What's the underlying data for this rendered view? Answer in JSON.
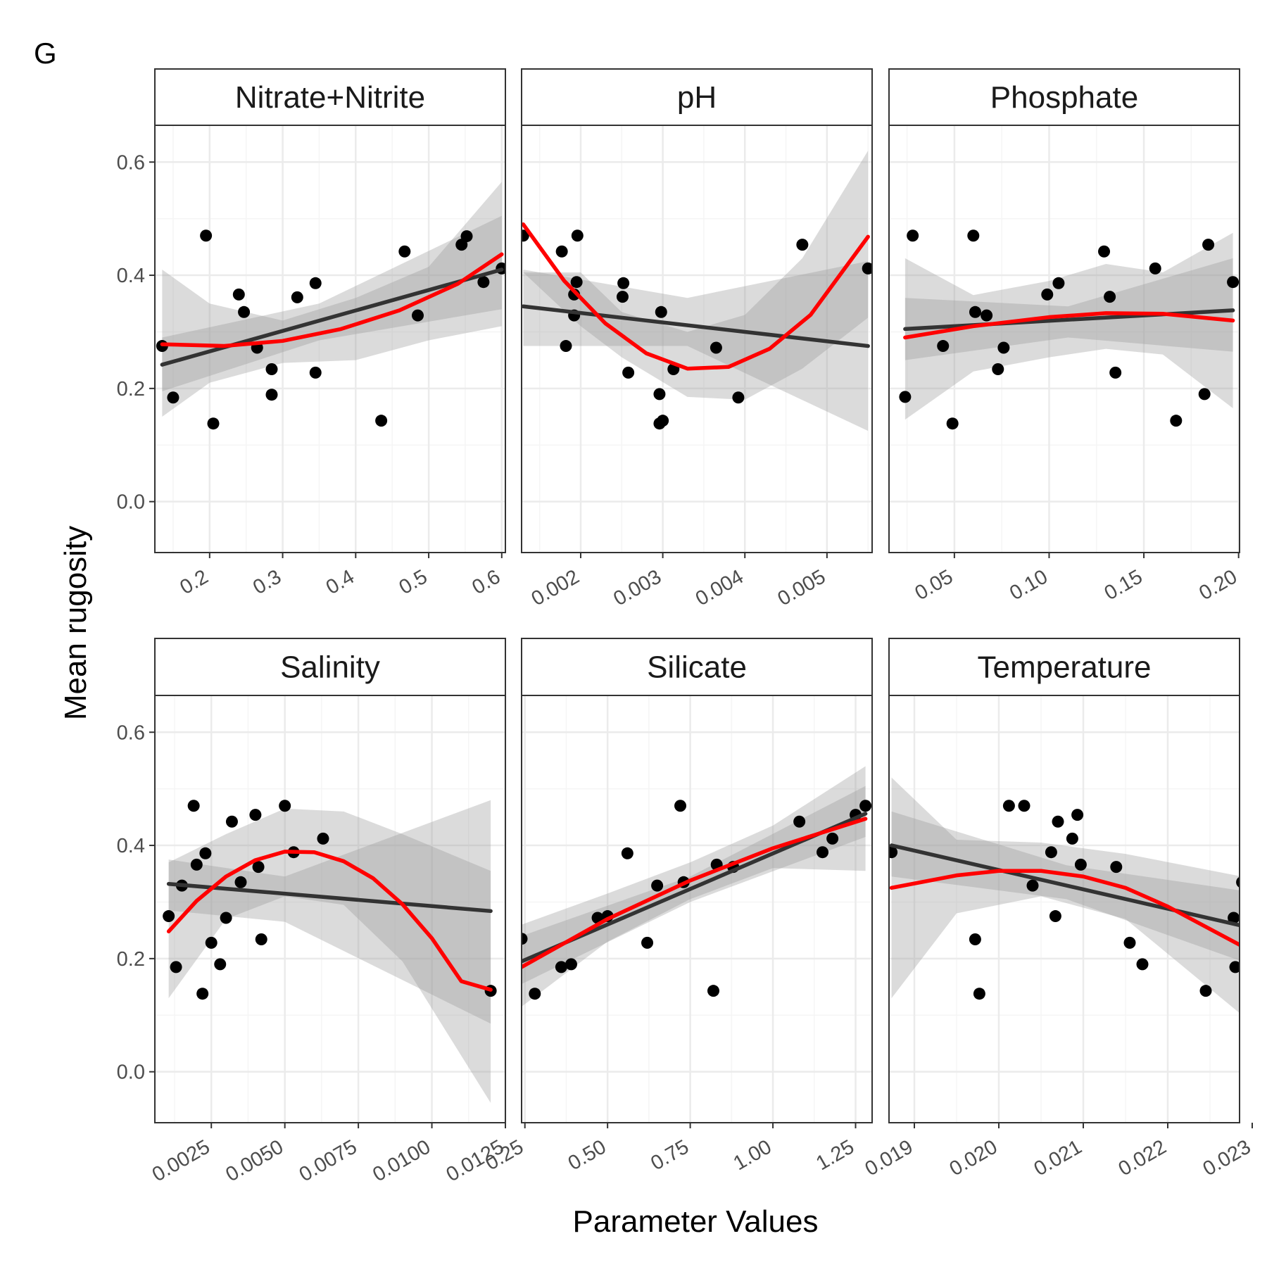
{
  "panel_tag": "G",
  "ylabel": "Mean rugosity",
  "xlabel": "Parameter Values",
  "colors": {
    "points": "#000000",
    "linear_fit": "#333333",
    "quadratic_fit": "#ff0000",
    "ribbon": "#999999",
    "strip_bg": "#ffffff",
    "grid_major": "#ebebeb",
    "grid_minor": "#f5f5f5"
  },
  "chart_data": [
    {
      "type": "scatter",
      "title": "Nitrate+Nitrite",
      "xlim": [
        0.125,
        0.605
      ],
      "ylim": [
        -0.09,
        0.665
      ],
      "xticks": [
        0.2,
        0.3,
        0.4,
        0.5,
        0.6
      ],
      "xtick_labels": [
        "0.2",
        "0.3",
        "0.4",
        "0.5",
        "0.6"
      ],
      "points": [
        [
          0.135,
          0.275
        ],
        [
          0.15,
          0.184
        ],
        [
          0.195,
          0.47
        ],
        [
          0.205,
          0.138
        ],
        [
          0.24,
          0.366
        ],
        [
          0.247,
          0.335
        ],
        [
          0.265,
          0.272
        ],
        [
          0.285,
          0.234
        ],
        [
          0.285,
          0.189
        ],
        [
          0.32,
          0.361
        ],
        [
          0.345,
          0.386
        ],
        [
          0.345,
          0.228
        ],
        [
          0.435,
          0.143
        ],
        [
          0.467,
          0.442
        ],
        [
          0.485,
          0.329
        ],
        [
          0.545,
          0.454
        ],
        [
          0.552,
          0.469
        ],
        [
          0.575,
          0.388
        ],
        [
          0.6,
          0.412
        ]
      ],
      "linear_fit": [
        [
          0.135,
          0.242
        ],
        [
          0.6,
          0.41
        ]
      ],
      "linear_band": [
        [
          0.135,
          0.195,
          0.29
        ],
        [
          0.35,
          0.285,
          0.35
        ],
        [
          0.6,
          0.34,
          0.505
        ]
      ],
      "quad_fit": [
        [
          0.135,
          0.278
        ],
        [
          0.22,
          0.275
        ],
        [
          0.3,
          0.284
        ],
        [
          0.38,
          0.305
        ],
        [
          0.46,
          0.338
        ],
        [
          0.54,
          0.385
        ],
        [
          0.6,
          0.437
        ]
      ],
      "quad_band": [
        [
          0.135,
          0.15,
          0.41
        ],
        [
          0.2,
          0.21,
          0.35
        ],
        [
          0.3,
          0.245,
          0.32
        ],
        [
          0.4,
          0.25,
          0.36
        ],
        [
          0.5,
          0.285,
          0.415
        ],
        [
          0.6,
          0.31,
          0.565
        ]
      ]
    },
    {
      "type": "scatter",
      "title": "pH",
      "xlim": [
        0.00128,
        0.00555
      ],
      "ylim": [
        -0.09,
        0.665
      ],
      "xticks": [
        0.002,
        0.003,
        0.004,
        0.005
      ],
      "xtick_labels": [
        "0.002",
        "0.003",
        "0.004",
        "0.005"
      ],
      "points": [
        [
          0.0013,
          0.47
        ],
        [
          0.00177,
          0.442
        ],
        [
          0.00182,
          0.275
        ],
        [
          0.00192,
          0.329
        ],
        [
          0.00192,
          0.366
        ],
        [
          0.00195,
          0.388
        ],
        [
          0.00196,
          0.47
        ],
        [
          0.00251,
          0.362
        ],
        [
          0.00252,
          0.386
        ],
        [
          0.00258,
          0.228
        ],
        [
          0.00296,
          0.19
        ],
        [
          0.00296,
          0.138
        ],
        [
          0.00298,
          0.335
        ],
        [
          0.003,
          0.143
        ],
        [
          0.00313,
          0.234
        ],
        [
          0.00365,
          0.272
        ],
        [
          0.00392,
          0.184
        ],
        [
          0.0047,
          0.454
        ],
        [
          0.0055,
          0.412
        ]
      ],
      "linear_fit": [
        [
          0.0013,
          0.345
        ],
        [
          0.0055,
          0.275
        ]
      ],
      "linear_band": [
        [
          0.0013,
          0.275,
          0.41
        ],
        [
          0.0033,
          0.275,
          0.36
        ],
        [
          0.0055,
          0.125,
          0.425
        ]
      ],
      "quad_fit": [
        [
          0.0013,
          0.49
        ],
        [
          0.0018,
          0.39
        ],
        [
          0.0023,
          0.315
        ],
        [
          0.0028,
          0.262
        ],
        [
          0.0033,
          0.235
        ],
        [
          0.0038,
          0.238
        ],
        [
          0.0043,
          0.27
        ],
        [
          0.0048,
          0.33
        ],
        [
          0.0055,
          0.468
        ]
      ],
      "quad_band": [
        [
          0.0013,
          0.405
        ],
        [
          0.002,
          0.31,
          0.405
        ],
        [
          0.0025,
          0.255,
          0.335
        ],
        [
          0.0033,
          0.185,
          0.3
        ],
        [
          0.004,
          0.18,
          0.33
        ],
        [
          0.0047,
          0.235,
          0.43
        ],
        [
          0.0055,
          0.325,
          0.62
        ]
      ]
    },
    {
      "type": "scatter",
      "title": "Phosphate",
      "xlim": [
        0.0155,
        0.2005
      ],
      "ylim": [
        -0.09,
        0.665
      ],
      "xticks": [
        0.05,
        0.1,
        0.15,
        0.2
      ],
      "xtick_labels": [
        "0.05",
        "0.10",
        "0.15",
        "0.20"
      ],
      "points": [
        [
          0.024,
          0.185
        ],
        [
          0.028,
          0.47
        ],
        [
          0.044,
          0.275
        ],
        [
          0.049,
          0.138
        ],
        [
          0.06,
          0.47
        ],
        [
          0.061,
          0.335
        ],
        [
          0.067,
          0.329
        ],
        [
          0.073,
          0.234
        ],
        [
          0.076,
          0.272
        ],
        [
          0.099,
          0.366
        ],
        [
          0.105,
          0.386
        ],
        [
          0.129,
          0.442
        ],
        [
          0.132,
          0.362
        ],
        [
          0.135,
          0.228
        ],
        [
          0.156,
          0.412
        ],
        [
          0.167,
          0.143
        ],
        [
          0.182,
          0.19
        ],
        [
          0.184,
          0.454
        ],
        [
          0.197,
          0.388
        ]
      ],
      "linear_fit": [
        [
          0.024,
          0.305
        ],
        [
          0.197,
          0.338
        ]
      ],
      "linear_band": [
        [
          0.024,
          0.25,
          0.36
        ],
        [
          0.11,
          0.29,
          0.345
        ],
        [
          0.197,
          0.265,
          0.43
        ]
      ],
      "quad_fit": [
        [
          0.024,
          0.29
        ],
        [
          0.06,
          0.31
        ],
        [
          0.1,
          0.326
        ],
        [
          0.13,
          0.333
        ],
        [
          0.16,
          0.332
        ],
        [
          0.197,
          0.32
        ]
      ],
      "quad_band": [
        [
          0.024,
          0.145,
          0.43
        ],
        [
          0.06,
          0.23,
          0.365
        ],
        [
          0.1,
          0.255,
          0.39
        ],
        [
          0.13,
          0.27,
          0.42
        ],
        [
          0.16,
          0.26,
          0.405
        ],
        [
          0.197,
          0.165,
          0.475
        ]
      ]
    },
    {
      "type": "scatter",
      "title": "Salinity",
      "xlim": [
        0.00058,
        0.0125
      ],
      "ylim": [
        -0.09,
        0.665
      ],
      "xticks": [
        0.0025,
        0.005,
        0.0075,
        0.01,
        0.0125
      ],
      "xtick_labels": [
        "0.0025",
        "0.0050",
        "0.0075",
        "0.0100",
        "0.0125"
      ],
      "points": [
        [
          0.00105,
          0.275
        ],
        [
          0.0013,
          0.185
        ],
        [
          0.0015,
          0.329
        ],
        [
          0.0019,
          0.47
        ],
        [
          0.002,
          0.366
        ],
        [
          0.0022,
          0.138
        ],
        [
          0.0023,
          0.386
        ],
        [
          0.0025,
          0.228
        ],
        [
          0.0028,
          0.19
        ],
        [
          0.003,
          0.272
        ],
        [
          0.0032,
          0.442
        ],
        [
          0.0035,
          0.335
        ],
        [
          0.004,
          0.454
        ],
        [
          0.0041,
          0.362
        ],
        [
          0.0042,
          0.234
        ],
        [
          0.005,
          0.47
        ],
        [
          0.0053,
          0.388
        ],
        [
          0.0063,
          0.412
        ],
        [
          0.012,
          0.143
        ]
      ],
      "linear_fit": [
        [
          0.00105,
          0.332
        ],
        [
          0.012,
          0.284
        ]
      ],
      "linear_band": [
        [
          0.00105,
          0.285,
          0.375
        ],
        [
          0.005,
          0.265,
          0.345
        ],
        [
          0.012,
          0.085,
          0.48
        ]
      ],
      "quad_fit": [
        [
          0.00105,
          0.248
        ],
        [
          0.002,
          0.302
        ],
        [
          0.003,
          0.345
        ],
        [
          0.004,
          0.374
        ],
        [
          0.005,
          0.389
        ],
        [
          0.006,
          0.388
        ],
        [
          0.007,
          0.372
        ],
        [
          0.008,
          0.342
        ],
        [
          0.009,
          0.296
        ],
        [
          0.01,
          0.236
        ],
        [
          0.011,
          0.16
        ],
        [
          0.012,
          0.145
        ]
      ],
      "quad_band": [
        [
          0.00105,
          0.13,
          0.37
        ],
        [
          0.003,
          0.27,
          0.42
        ],
        [
          0.005,
          0.31,
          0.465
        ],
        [
          0.007,
          0.295,
          0.46
        ],
        [
          0.009,
          0.195,
          0.42
        ],
        [
          0.012,
          -0.055,
          0.355
        ]
      ]
    },
    {
      "type": "scatter",
      "title": "Silicate",
      "xlim": [
        0.24,
        1.3
      ],
      "ylim": [
        -0.09,
        0.665
      ],
      "xticks": [
        0.25,
        0.5,
        0.75,
        1.0,
        1.25
      ],
      "xtick_labels": [
        "0.25",
        "0.50",
        "0.75",
        "1.00",
        "1.25"
      ],
      "points": [
        [
          0.24,
          0.235
        ],
        [
          0.28,
          0.138
        ],
        [
          0.36,
          0.185
        ],
        [
          0.39,
          0.19
        ],
        [
          0.47,
          0.272
        ],
        [
          0.5,
          0.275
        ],
        [
          0.56,
          0.386
        ],
        [
          0.62,
          0.228
        ],
        [
          0.65,
          0.329
        ],
        [
          0.72,
          0.47
        ],
        [
          0.73,
          0.335
        ],
        [
          0.82,
          0.143
        ],
        [
          0.83,
          0.366
        ],
        [
          0.88,
          0.362
        ],
        [
          1.08,
          0.442
        ],
        [
          1.15,
          0.388
        ],
        [
          1.18,
          0.412
        ],
        [
          1.25,
          0.454
        ],
        [
          1.28,
          0.47
        ]
      ],
      "linear_fit": [
        [
          0.24,
          0.195
        ],
        [
          1.28,
          0.456
        ]
      ],
      "linear_band": [
        [
          0.24,
          0.155,
          0.24
        ],
        [
          0.75,
          0.3,
          0.345
        ],
        [
          1.28,
          0.415,
          0.505
        ]
      ],
      "quad_fit": [
        [
          0.24,
          0.185
        ],
        [
          0.5,
          0.27
        ],
        [
          0.75,
          0.338
        ],
        [
          1.0,
          0.395
        ],
        [
          1.28,
          0.447
        ]
      ],
      "quad_band": [
        [
          0.24,
          0.115,
          0.26
        ],
        [
          0.5,
          0.23,
          0.315
        ],
        [
          0.75,
          0.305,
          0.37
        ],
        [
          1.0,
          0.36,
          0.435
        ],
        [
          1.28,
          0.355,
          0.54
        ]
      ]
    },
    {
      "type": "scatter",
      "title": "Temperature",
      "xlim": [
        0.0187,
        0.02285
      ],
      "ylim": [
        -0.09,
        0.665
      ],
      "xticks": [
        0.019,
        0.02,
        0.021,
        0.022,
        0.023
      ],
      "xtick_labels": [
        "0.019",
        "0.020",
        "0.021",
        "0.022",
        "0.023"
      ],
      "points": [
        [
          0.01873,
          0.388
        ],
        [
          0.01972,
          0.234
        ],
        [
          0.01977,
          0.138
        ],
        [
          0.02012,
          0.47
        ],
        [
          0.0203,
          0.47
        ],
        [
          0.0204,
          0.329
        ],
        [
          0.02062,
          0.388
        ],
        [
          0.02067,
          0.275
        ],
        [
          0.0207,
          0.442
        ],
        [
          0.02087,
          0.412
        ],
        [
          0.02093,
          0.454
        ],
        [
          0.02097,
          0.366
        ],
        [
          0.02139,
          0.362
        ],
        [
          0.02155,
          0.228
        ],
        [
          0.0217,
          0.19
        ],
        [
          0.02245,
          0.143
        ],
        [
          0.02278,
          0.272
        ],
        [
          0.0228,
          0.185
        ],
        [
          0.02288,
          0.335
        ]
      ],
      "linear_fit": [
        [
          0.01873,
          0.4
        ],
        [
          0.02288,
          0.258
        ]
      ],
      "linear_band": [
        [
          0.01873,
          0.345,
          0.46
        ],
        [
          0.0208,
          0.305,
          0.365
        ],
        [
          0.02288,
          0.195,
          0.32
        ]
      ],
      "quad_fit": [
        [
          0.01873,
          0.325
        ],
        [
          0.0195,
          0.347
        ],
        [
          0.02,
          0.355
        ],
        [
          0.0205,
          0.355
        ],
        [
          0.021,
          0.345
        ],
        [
          0.0215,
          0.325
        ],
        [
          0.022,
          0.292
        ],
        [
          0.02288,
          0.222
        ]
      ],
      "quad_band": [
        [
          0.01873,
          0.13,
          0.52
        ],
        [
          0.0195,
          0.28,
          0.41
        ],
        [
          0.0205,
          0.31,
          0.405
        ],
        [
          0.0215,
          0.27,
          0.385
        ],
        [
          0.02288,
          0.1,
          0.345
        ]
      ]
    }
  ]
}
